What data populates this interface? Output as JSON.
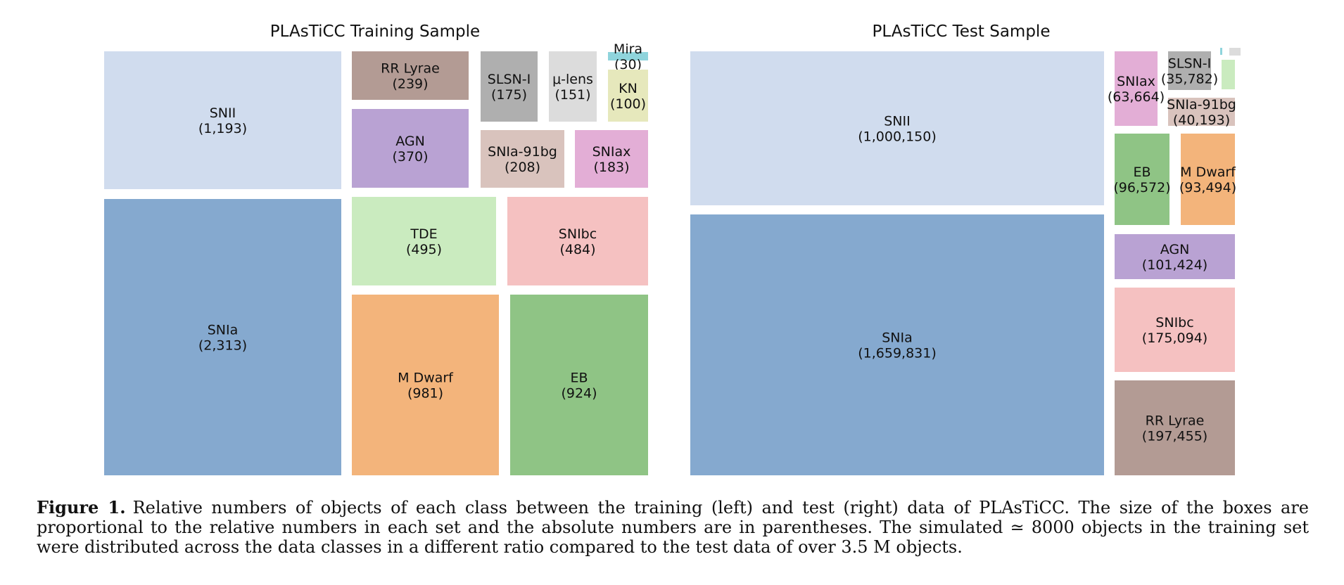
{
  "chart_data": [
    {
      "type": "treemap",
      "title": "PLAsTiCC Training Sample",
      "items": [
        {
          "name": "SNII",
          "value": "1,193",
          "color": "#d0dcee"
        },
        {
          "name": "SNIa",
          "value": "2,313",
          "color": "#85a9cf"
        },
        {
          "name": "RR Lyrae",
          "value": "239",
          "color": "#b39b94"
        },
        {
          "name": "AGN",
          "value": "370",
          "color": "#b9a2d3"
        },
        {
          "name": "SLSN-I",
          "value": "175",
          "color": "#afafaf"
        },
        {
          "name": "μ-lens",
          "value": "151",
          "color": "#dcdcdc"
        },
        {
          "name": "Mira",
          "value": "30",
          "color": "#8fd4dc"
        },
        {
          "name": "KN",
          "value": "100",
          "color": "#e6e8bc"
        },
        {
          "name": "SNIa-91bg",
          "value": "208",
          "color": "#d9c3bd"
        },
        {
          "name": "SNIax",
          "value": "183",
          "color": "#e3aed6"
        },
        {
          "name": "TDE",
          "value": "495",
          "color": "#caebbf"
        },
        {
          "name": "SNIbc",
          "value": "484",
          "color": "#f5c1c1"
        },
        {
          "name": "M Dwarf",
          "value": "981",
          "color": "#f3b47b"
        },
        {
          "name": "EB",
          "value": "924",
          "color": "#8fc485"
        }
      ]
    },
    {
      "type": "treemap",
      "title": "PLAsTiCC Test Sample",
      "items": [
        {
          "name": "SNII",
          "value": "1,000,150",
          "color": "#d0dcee"
        },
        {
          "name": "SNIa",
          "value": "1,659,831",
          "color": "#85a9cf"
        },
        {
          "name": "SNIax",
          "value": "63,664",
          "color": "#e3aed6"
        },
        {
          "name": "SLSN-I",
          "value": "35,782",
          "color": "#afafaf"
        },
        {
          "name": "SNIa-91bg",
          "value": "40,193",
          "color": "#d9c3bd"
        },
        {
          "name": "EB",
          "value": "96,572",
          "color": "#8fc485"
        },
        {
          "name": "M Dwarf",
          "value": "93,494",
          "color": "#f3b47b"
        },
        {
          "name": "AGN",
          "value": "101,424",
          "color": "#b9a2d3"
        },
        {
          "name": "SNIbc",
          "value": "175,094",
          "color": "#f5c1c1"
        },
        {
          "name": "RR Lyrae",
          "value": "197,455",
          "color": "#b39b94"
        }
      ],
      "unlabeled_items": [
        {
          "color": "#8fd4dc"
        },
        {
          "color": "#dcdcdc"
        },
        {
          "color": "#caebbf"
        }
      ]
    }
  ],
  "caption": {
    "label": "Figure 1.",
    "text": "Relative numbers of objects of each class between the training (left) and test (right) data of PLAsTiCC. The size of the boxes are proportional to the relative numbers in each set and the absolute numbers are in parentheses. The simulated ≃ 8000 objects in the training set were distributed across the data classes in a different ratio compared to the test data of over 3.5 M objects."
  }
}
